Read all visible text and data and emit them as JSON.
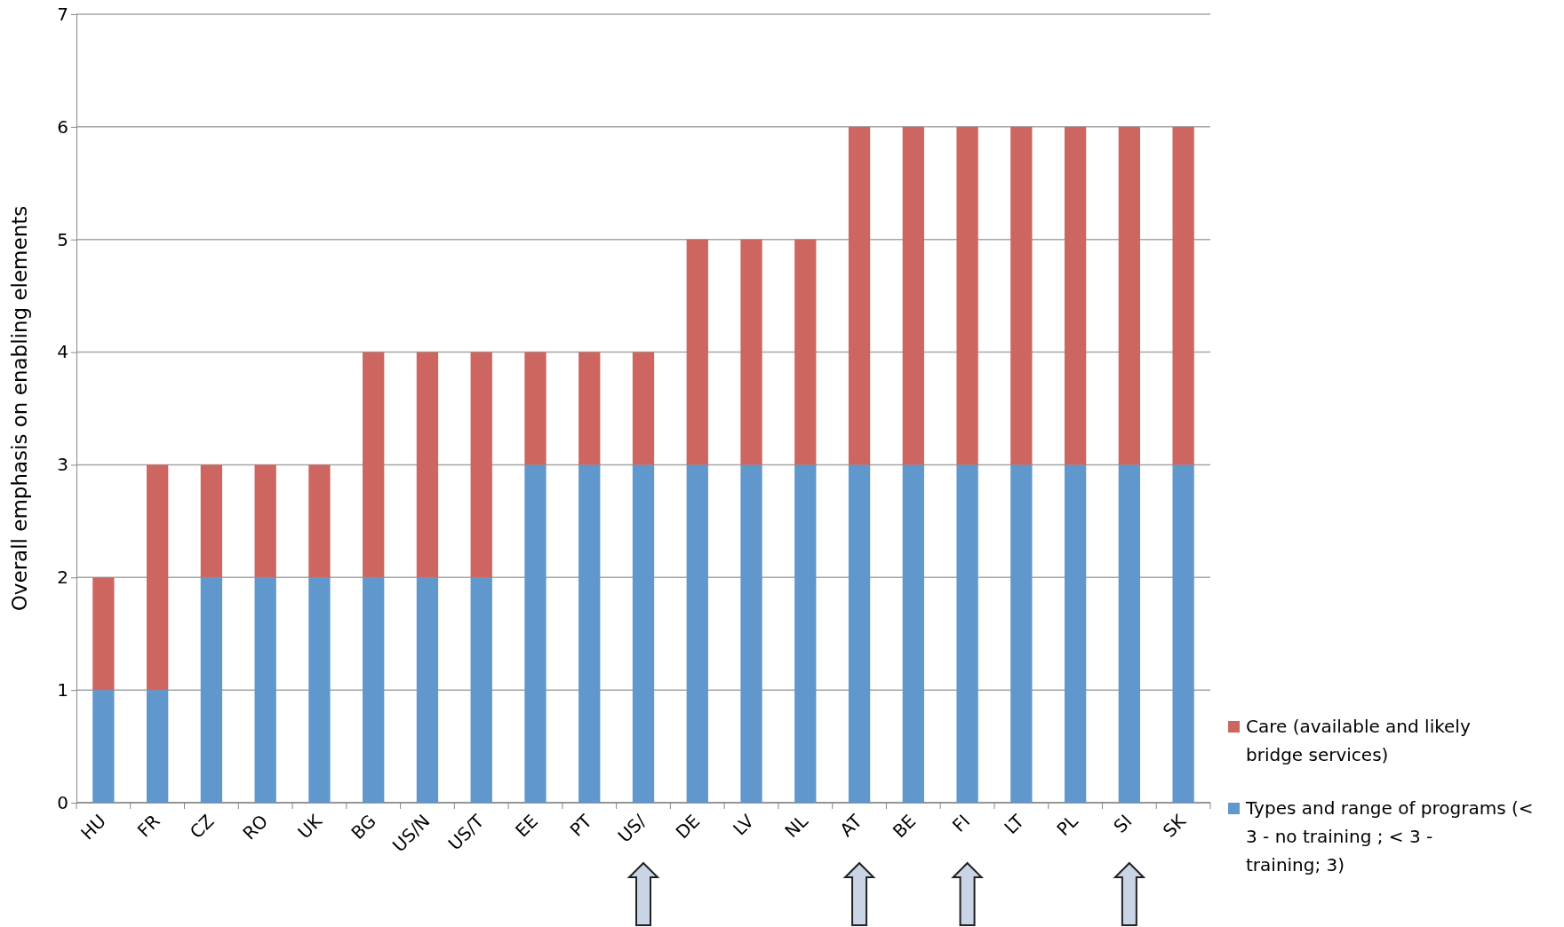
{
  "chart_data": {
    "type": "bar",
    "stacked": true,
    "ylabel": "Overall emphasis on enabling elements",
    "categories": [
      "HU",
      "FR",
      "CZ",
      "RO",
      "UK",
      "BG",
      "US/N",
      "US/T",
      "EE",
      "PT",
      "US/",
      "DE",
      "LV",
      "NL",
      "AT",
      "BE",
      "FI",
      "LT",
      "PL",
      "SI",
      "SK"
    ],
    "series": [
      {
        "name": "Types and range of programs (< 3 - no training ; < 3 - training; 3)",
        "color": "#6097cc",
        "values": [
          1,
          1,
          2,
          2,
          2,
          2,
          2,
          2,
          3,
          3,
          3,
          3,
          3,
          3,
          3,
          3,
          3,
          3,
          3,
          3,
          3
        ]
      },
      {
        "name": "Care (available and likely bridge services)",
        "color": "#cd6660",
        "values": [
          1,
          2,
          1,
          1,
          1,
          2,
          2,
          2,
          1,
          1,
          1,
          2,
          2,
          2,
          3,
          3,
          3,
          3,
          3,
          3,
          3
        ]
      }
    ],
    "ylim": [
      0,
      7
    ],
    "yticks": [
      0,
      1,
      2,
      3,
      4,
      5,
      6,
      7
    ],
    "grid": "y",
    "legend": "right"
  }
}
